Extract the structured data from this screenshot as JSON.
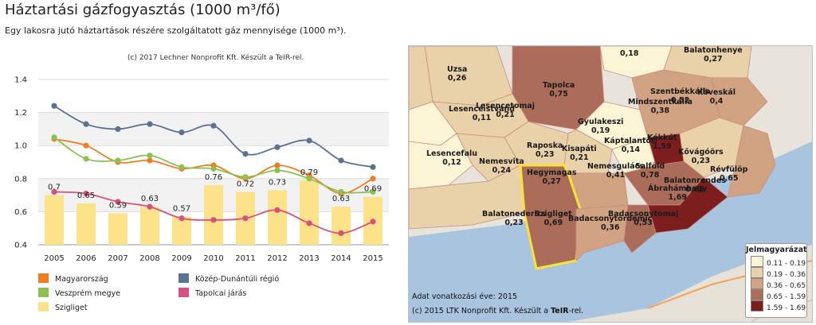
{
  "page": {
    "title": "Háztartási gázfogyasztás (1000 m³/fő)",
    "subtitle": "Egy lakosra jutó háztartások részére szolgáltatott gáz mennyisége (1000 m³)."
  },
  "chart_credit": "(c) 2017 Lechner Nonprofit Kft. Készült a TeIR-rel.",
  "chart_data": {
    "type": "bar",
    "categories": [
      "2005",
      "2006",
      "2007",
      "2008",
      "2009",
      "2010",
      "2011",
      "2012",
      "2013",
      "2014",
      "2015"
    ],
    "ylim": [
      0.4,
      1.4
    ],
    "yticks": [
      "0.4",
      "0.6",
      "0.8",
      "1.0",
      "1.2",
      "1.4"
    ],
    "legend_position": "bottom",
    "series": [
      {
        "name": "Szigliget",
        "kind": "bar",
        "color": "#fce38a",
        "values": [
          0.7,
          0.65,
          0.59,
          0.63,
          0.57,
          0.76,
          0.72,
          0.73,
          0.79,
          0.63,
          0.69
        ],
        "labels": [
          "0.7",
          "0.65",
          "0.59",
          "0.63",
          "0.57",
          "0.76",
          "0.72",
          "0.73",
          "0.79",
          "0.63",
          "0.69"
        ]
      },
      {
        "name": "Magyarország",
        "kind": "line",
        "color": "#f07d22",
        "values": [
          1.04,
          1.0,
          0.9,
          0.91,
          0.86,
          0.88,
          0.8,
          0.88,
          0.82,
          0.71,
          0.8
        ]
      },
      {
        "name": "Közép-Dunántúli régió",
        "kind": "line",
        "color": "#5b7293",
        "values": [
          1.24,
          1.13,
          1.1,
          1.13,
          1.08,
          1.12,
          0.95,
          0.99,
          1.03,
          0.91,
          0.87
        ]
      },
      {
        "name": "Veszprém megye",
        "kind": "line",
        "color": "#8cc152",
        "values": [
          1.05,
          0.92,
          0.91,
          0.94,
          0.87,
          0.86,
          0.81,
          0.85,
          0.8,
          0.72,
          0.72
        ]
      },
      {
        "name": "Tapolcai járás",
        "kind": "line",
        "color": "#d94f7e",
        "values": [
          0.72,
          0.71,
          0.66,
          0.63,
          0.56,
          0.55,
          0.56,
          0.61,
          0.53,
          0.47,
          0.54
        ]
      }
    ]
  },
  "legend": {
    "items": [
      {
        "name": "Magyarország",
        "color": "#f07d22"
      },
      {
        "name": "Közép-Dunántúli régió",
        "color": "#5b7293"
      },
      {
        "name": "Veszprém megye",
        "color": "#8cc152"
      },
      {
        "name": "Tapolcai járás",
        "color": "#d94f7e"
      },
      {
        "name": "Szigliget",
        "color": "#fce38a"
      }
    ]
  },
  "map": {
    "labels": [
      {
        "name": "Uzsa",
        "value": "0,26"
      },
      {
        "name": "Tapolca",
        "value": "0,75"
      },
      {
        "name": "Lesencetomaj",
        "value": "0,21"
      },
      {
        "name": "Lesenceistvánd",
        "value": "0,11"
      },
      {
        "name": "Gyulakeszi",
        "value": "0,19"
      },
      {
        "name": "Szentbékkálla",
        "value": "0,52"
      },
      {
        "name": "Mindszentkálla",
        "value": "0,38"
      },
      {
        "name": "Köveskál",
        "value": "0,4"
      },
      {
        "name": "Balatonhenye",
        "value": "0,27"
      },
      {
        "name": "Kékkút",
        "value": "1,59"
      },
      {
        "name": "Káptalantóti",
        "value": "0,14"
      },
      {
        "name": "Raposka",
        "value": "0,23"
      },
      {
        "name": "Kisapáti",
        "value": "0,21"
      },
      {
        "name": "Lesencefalu",
        "value": "0,12"
      },
      {
        "name": "Nemesvita",
        "value": "0,24"
      },
      {
        "name": "Hegymagas",
        "value": "0,27"
      },
      {
        "name": "Nemesgulács",
        "value": "0,41"
      },
      {
        "name": "Salföld",
        "value": "0,78"
      },
      {
        "name": "Kővágóörs",
        "value": "0,23"
      },
      {
        "name": "Révfülöp",
        "value": "0,65"
      },
      {
        "name": "Balatonrendes",
        "value": "0,65"
      },
      {
        "name": "Ábrahámhegy",
        "value": "1,69"
      },
      {
        "name": "Balatonederics",
        "value": "0,23"
      },
      {
        "name": "Szigliget",
        "value": "0,69"
      },
      {
        "name": "Badacsonytördemic",
        "value": "0,36"
      },
      {
        "name": "Badacsonytomaj",
        "value": "0,53"
      },
      {
        "name": "",
        "value": "0,18"
      }
    ],
    "data_year_label": "Adat vonatkozási éve: 2015",
    "credit_prefix": "(c) 2015 LTK Nonprofit Kft. Készült a ",
    "credit_brand": "TeIR",
    "credit_suffix": "-rel.",
    "legend_title": "Jelmagyarázat",
    "legend_items": [
      {
        "range": "0.11 - 0.19",
        "color": "#fbf5d6"
      },
      {
        "range": "0.19 - 0.36",
        "color": "#e9d2aa"
      },
      {
        "range": "0.36 - 0.65",
        "color": "#d2a382"
      },
      {
        "range": "0.65 - 1.59",
        "color": "#ab6c5a"
      },
      {
        "range": "1.59 - 1.69",
        "color": "#7d1e1e"
      }
    ]
  }
}
